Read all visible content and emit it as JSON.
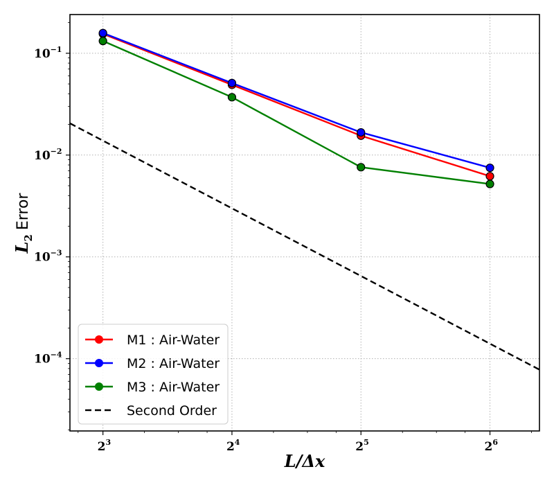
{
  "chart_data": {
    "type": "line",
    "xscale": "log2",
    "yscale": "log10",
    "xlabel": "L/Δx",
    "ylabel_math": "L",
    "ylabel_sub": "2",
    "ylabel_text": "Error",
    "xlim": [
      6.7,
      83.5
    ],
    "ylim": [
      1.95e-05,
      0.24
    ],
    "x_ticks": [
      {
        "base": "2",
        "exp": "3",
        "value": 8
      },
      {
        "base": "2",
        "exp": "4",
        "value": 16
      },
      {
        "base": "2",
        "exp": "5",
        "value": 32
      },
      {
        "base": "2",
        "exp": "6",
        "value": 64
      }
    ],
    "y_ticks": [
      {
        "base": "10",
        "exp": "−1",
        "value": 0.1
      },
      {
        "base": "10",
        "exp": "−2",
        "value": 0.01
      },
      {
        "base": "10",
        "exp": "−3",
        "value": 0.001
      },
      {
        "base": "10",
        "exp": "−4",
        "value": 0.0001
      }
    ],
    "grid": true,
    "legend_position": "lower-left",
    "series": [
      {
        "name": "M1 : Air-Water",
        "color": "#ff0000",
        "x": [
          8,
          16,
          32,
          64
        ],
        "y": [
          0.155,
          0.049,
          0.0155,
          0.0062
        ]
      },
      {
        "name": "M2 : Air-Water",
        "color": "#0000ff",
        "x": [
          8,
          16,
          32,
          64
        ],
        "y": [
          0.158,
          0.051,
          0.0167,
          0.0075
        ]
      },
      {
        "name": "M3 : Air-Water",
        "color": "#008000",
        "x": [
          8,
          16,
          32,
          64
        ],
        "y": [
          0.132,
          0.037,
          0.0076,
          0.0052
        ]
      },
      {
        "name": "Second Order",
        "color": "#000000",
        "style": "dashed",
        "x": [
          6.7,
          83.5
        ],
        "y": [
          0.0205,
          7.8e-05
        ]
      }
    ]
  }
}
